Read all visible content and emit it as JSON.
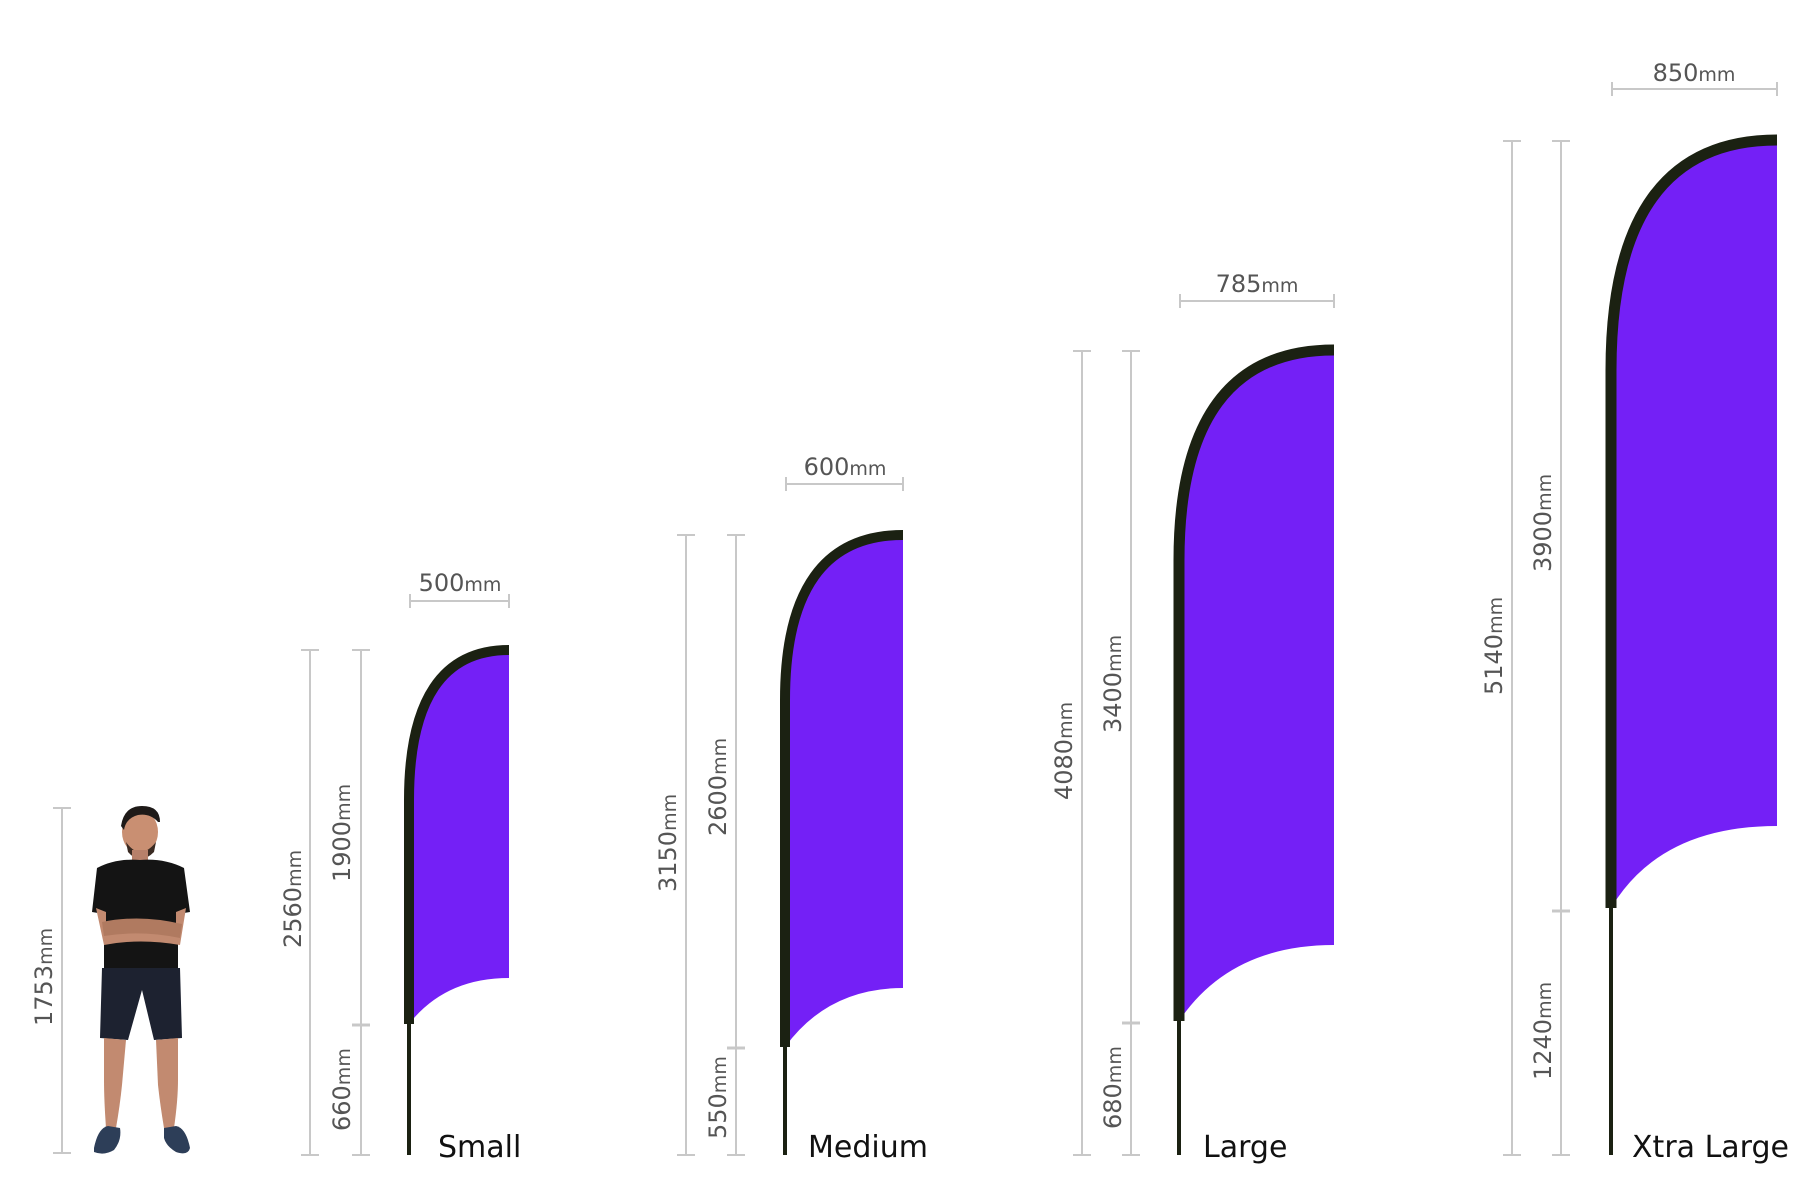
{
  "colors": {
    "flag": "#7420f6",
    "pole": "#1b2112",
    "dim_line": "#c8c8c8",
    "dim_text": "#555555",
    "label": "#111111"
  },
  "unit": "mm",
  "person": {
    "height": "1753",
    "icon": "person-standing-icon"
  },
  "flags": [
    {
      "label": "Small",
      "width": "500",
      "total": "2560",
      "flag_height": "1900",
      "pole_height": "660"
    },
    {
      "label": "Medium",
      "width": "600",
      "total": "3150",
      "flag_height": "2600",
      "pole_height": "550"
    },
    {
      "label": "Large",
      "width": "785",
      "total": "4080",
      "flag_height": "3400",
      "pole_height": "680"
    },
    {
      "label": "Xtra Large",
      "width": "850",
      "total": "5140",
      "flag_height": "3900",
      "pole_height": "1240"
    }
  ]
}
